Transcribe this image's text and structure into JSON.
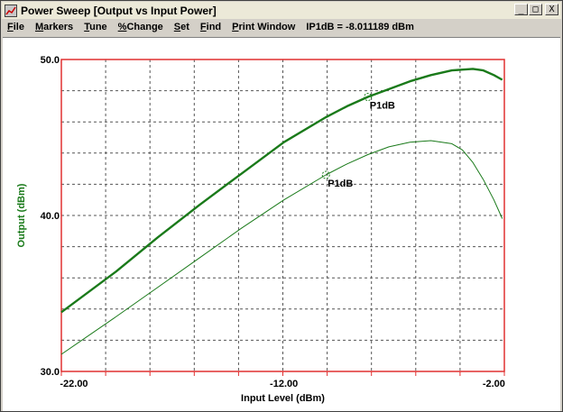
{
  "window": {
    "title": "Power Sweep [Output vs Input Power]",
    "controls": {
      "minimize": "_",
      "maximize": "□",
      "close": "X"
    }
  },
  "menu": {
    "items": [
      {
        "label": "File",
        "accel": "F",
        "rest": "ile"
      },
      {
        "label": "Markers",
        "accel": "M",
        "rest": "arkers"
      },
      {
        "label": "Tune",
        "accel": "T",
        "rest": "une"
      },
      {
        "label": "%Change",
        "accel": "%",
        "rest": "Change"
      },
      {
        "label": "Set",
        "accel": "S",
        "rest": "et"
      },
      {
        "label": "Find",
        "accel": "F",
        "rest": "ind"
      },
      {
        "label": "Print Window",
        "accel": "P",
        "rest": "rint Window"
      }
    ],
    "status": "IP1dB = -8.011189 dBm"
  },
  "colors": {
    "frame": "#e03030",
    "grid": "#555555",
    "trace": "#1a7a1a",
    "ylabel": "#1a7a1a"
  },
  "chart_data": {
    "type": "line",
    "xlabel": "Input Level (dBm)",
    "ylabel": "Output (dBm)",
    "xlim": [
      -22.6,
      -1.5
    ],
    "ylim": [
      30.0,
      50.0
    ],
    "xticks": [
      -22.0,
      -12.0,
      -2.0
    ],
    "xtick_labels": [
      "-22.00",
      "-12.00",
      "-2.00"
    ],
    "yticks": [
      30.0,
      40.0,
      50.0
    ],
    "ytick_labels": [
      "30.0",
      "40.0",
      "50.0"
    ],
    "grid": true,
    "series": [
      {
        "style": "thick",
        "x": [
          -22.6,
          -20,
          -18,
          -16,
          -14,
          -12,
          -10,
          -9,
          -8,
          -7,
          -6,
          -5,
          -4,
          -3,
          -2.5,
          -2,
          -1.6
        ],
        "y": [
          33.8,
          36.4,
          38.6,
          40.7,
          42.7,
          44.7,
          46.3,
          47.0,
          47.6,
          48.1,
          48.6,
          49.0,
          49.3,
          49.4,
          49.3,
          49.0,
          48.7
        ]
      },
      {
        "style": "thin",
        "x": [
          -22.6,
          -20,
          -18,
          -16,
          -14,
          -12,
          -10,
          -9,
          -8,
          -7,
          -6,
          -5,
          -4,
          -3.5,
          -3,
          -2.5,
          -2,
          -1.6
        ],
        "y": [
          31.1,
          33.5,
          35.4,
          37.3,
          39.2,
          41.0,
          42.6,
          43.3,
          43.9,
          44.4,
          44.7,
          44.8,
          44.6,
          44.2,
          43.4,
          42.3,
          41.0,
          39.8
        ]
      }
    ],
    "markers": [
      {
        "label": "P1dB",
        "x": -8.0,
        "y": 47.6
      },
      {
        "label": "P1dB",
        "x": -10.0,
        "y": 42.6
      }
    ]
  }
}
